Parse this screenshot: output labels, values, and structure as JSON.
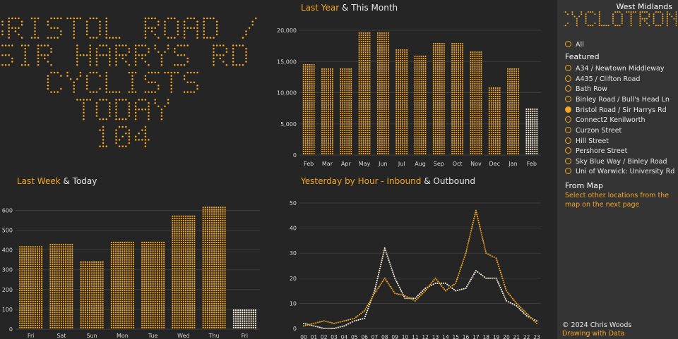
{
  "big_display": {
    "lines": [
      "BRISTOL ROAD /",
      "SIR HARRYS RD",
      "CYCLISTS",
      "TODAY",
      "104"
    ],
    "color": "#f5a623"
  },
  "last_year": {
    "title_highlight": "Last Year",
    "title_rest": " & This Month",
    "chart_data": {
      "type": "bar",
      "categories": [
        "Feb",
        "Mar",
        "Apr",
        "May",
        "Jun",
        "Jul",
        "Aug",
        "Sep",
        "Oct",
        "Nov",
        "Dec",
        "Jan",
        "Feb"
      ],
      "series": [
        {
          "values": [
            14700,
            13800,
            13800,
            19800,
            19800,
            17000,
            16100,
            17900,
            17900,
            16600,
            11000,
            13800,
            null
          ]
        },
        {
          "values": [
            null,
            null,
            null,
            null,
            null,
            null,
            null,
            null,
            null,
            null,
            null,
            null,
            7500
          ]
        }
      ],
      "yticks": [
        "0",
        "5,000",
        "10,000",
        "15,000",
        "20,000"
      ],
      "ylim": [
        0,
        20000
      ],
      "grid": true
    }
  },
  "last_week": {
    "title_highlight": "Last Week",
    "title_rest": " & Today",
    "chart_data": {
      "type": "bar",
      "categories": [
        "Fri",
        "Sat",
        "Sun",
        "Mon",
        "Tue",
        "Wed",
        "Thu",
        "Fri"
      ],
      "series": [
        {
          "values": [
            420,
            435,
            345,
            445,
            445,
            575,
            615,
            null
          ]
        },
        {
          "values": [
            null,
            null,
            null,
            null,
            null,
            null,
            null,
            104
          ]
        }
      ],
      "yticks": [
        "0",
        "100",
        "200",
        "300",
        "400",
        "500",
        "600"
      ],
      "ylim": [
        0,
        630
      ],
      "grid": true
    }
  },
  "yesterday": {
    "title_highlight": "Yesterday by Hour - Inbound",
    "title_rest": " & Outbound",
    "chart_data": {
      "type": "line",
      "categories": [
        "00",
        "01",
        "02",
        "03",
        "04",
        "05",
        "06",
        "07",
        "08",
        "09",
        "10",
        "11",
        "12",
        "13",
        "14",
        "15",
        "16",
        "17",
        "18",
        "19",
        "20",
        "21",
        "22",
        "23"
      ],
      "series": [
        {
          "name": "Inbound",
          "values": [
            1,
            2,
            3,
            2,
            3,
            4,
            7,
            14,
            20,
            14,
            13,
            11,
            15,
            20,
            15,
            18,
            30,
            47,
            30,
            28,
            15,
            10,
            6,
            2
          ]
        },
        {
          "name": "Outbound",
          "values": [
            2,
            1,
            0,
            0,
            1,
            3,
            4,
            15,
            32,
            20,
            12,
            12,
            16,
            18,
            18,
            15,
            16,
            23,
            20,
            20,
            11,
            9,
            5,
            3
          ]
        }
      ],
      "yticks": [
        "0",
        "10",
        "20",
        "30",
        "40",
        "50"
      ],
      "ylim": [
        0,
        50
      ],
      "grid": true
    }
  },
  "sidebar": {
    "region": "West Midlands",
    "app_name": "CYCLOTRON",
    "all_label": "All",
    "featured_heading": "Featured",
    "featured_items": [
      {
        "label": "A34 / Newtown Middleway",
        "selected": false
      },
      {
        "label": "A435 / Clifton Road",
        "selected": false
      },
      {
        "label": "Bath Row",
        "selected": false
      },
      {
        "label": "Binley Road / Bull's Head Ln",
        "selected": false
      },
      {
        "label": "Bristol Road / Sir Harrys Rd",
        "selected": true
      },
      {
        "label": "Connect2 Kenilworth",
        "selected": false
      },
      {
        "label": "Curzon Street",
        "selected": false
      },
      {
        "label": "Hill Street",
        "selected": false
      },
      {
        "label": "Pershore Street",
        "selected": false
      },
      {
        "label": "Sky Blue Way / Binley Road",
        "selected": false
      },
      {
        "label": "Uni of Warwick: University Rd",
        "selected": false
      }
    ],
    "from_map_heading": "From Map",
    "from_map_note": "Select other locations from the map on the next page",
    "copyright": "© 2024 Chris Woods",
    "credit": "Drawing with Data"
  },
  "colors": {
    "accent": "#f5a623",
    "today": "#fff4dc",
    "background": "#252525",
    "sidebar": "#343434",
    "grid": "#3d3d3d",
    "axis_text": "#d8d8d8"
  }
}
